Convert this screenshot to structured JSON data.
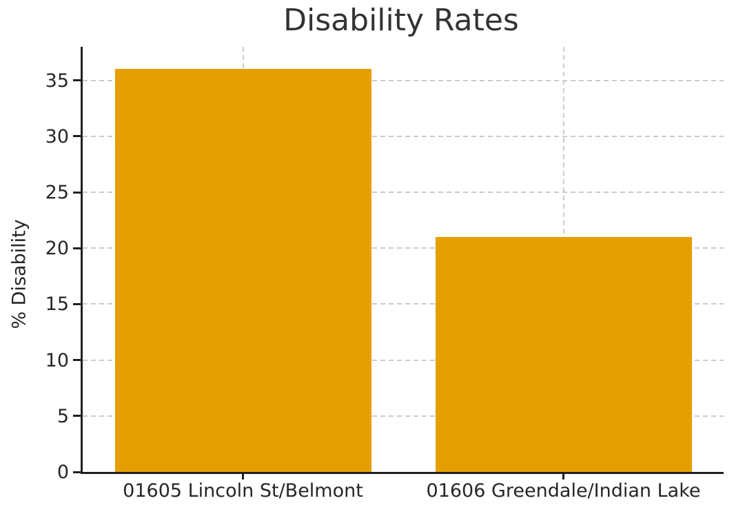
{
  "chart_data": {
    "type": "bar",
    "title": "Disability Rates",
    "xlabel": "",
    "ylabel": "% Disability",
    "categories": [
      "01605 Lincoln St/Belmont",
      "01606 Greendale/Indian Lake"
    ],
    "values": [
      36,
      21
    ],
    "ylim": [
      0,
      38
    ],
    "yticks": [
      0,
      5,
      10,
      15,
      20,
      25,
      30,
      35
    ],
    "bar_color": "#E69F00",
    "bar_width_fraction": 0.8,
    "grid": "on",
    "grid_style": "dashed",
    "grid_color": "#cbcbcb",
    "text_color": "#262626",
    "spine_color": "#1f1f1f",
    "legend": "none"
  }
}
